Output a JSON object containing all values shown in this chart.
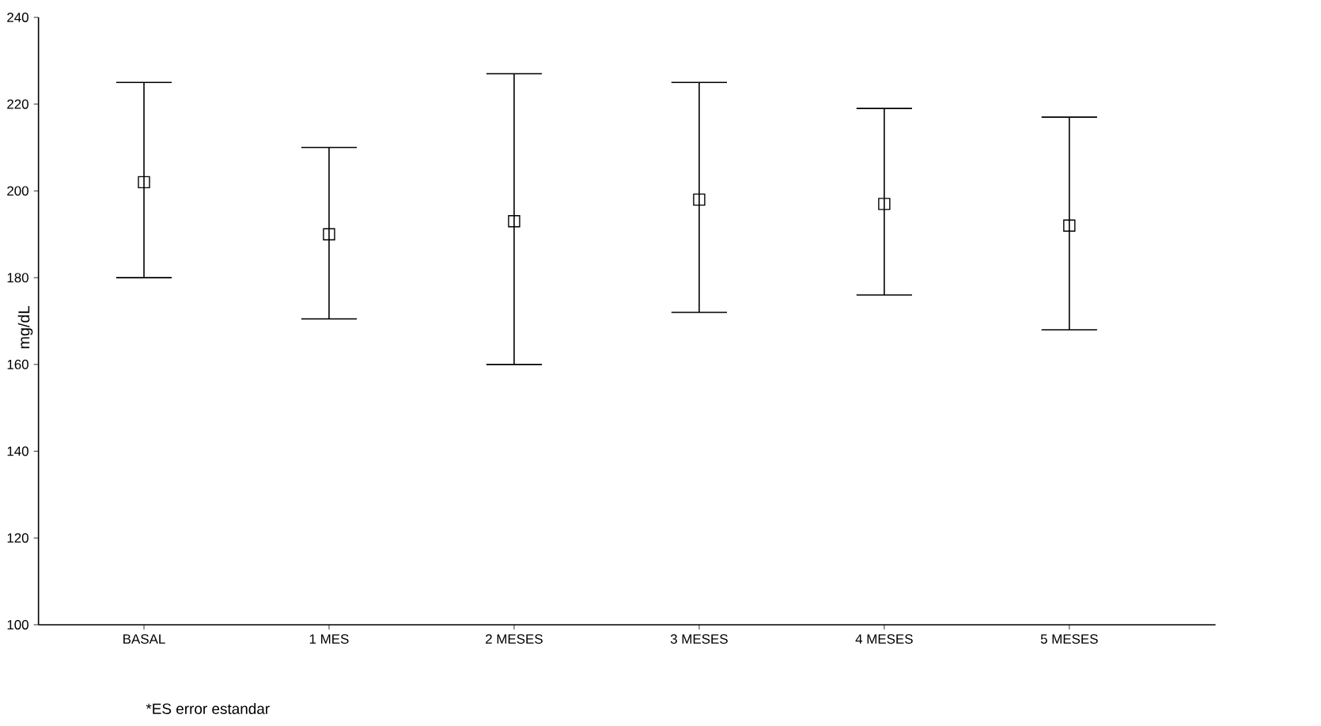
{
  "chart_data": {
    "type": "scatter",
    "ylabel": "mg/dL",
    "categories": [
      "BASAL",
      "1 MES",
      "2 MESES",
      "3 MESES",
      "4 MESES",
      "5 MESES"
    ],
    "values": [
      202,
      190,
      193,
      198,
      197,
      192
    ],
    "errors": [
      [
        180,
        225
      ],
      [
        170.5,
        210
      ],
      [
        160,
        227
      ],
      [
        172,
        225
      ],
      [
        176,
        219
      ],
      [
        168,
        217
      ]
    ],
    "color": "#000000",
    "marker": "square",
    "ylim": [
      100,
      240
    ],
    "yticks": [
      100,
      120,
      140,
      160,
      180,
      200,
      220,
      240
    ],
    "annotations": [
      "*ES  error estandar"
    ]
  }
}
